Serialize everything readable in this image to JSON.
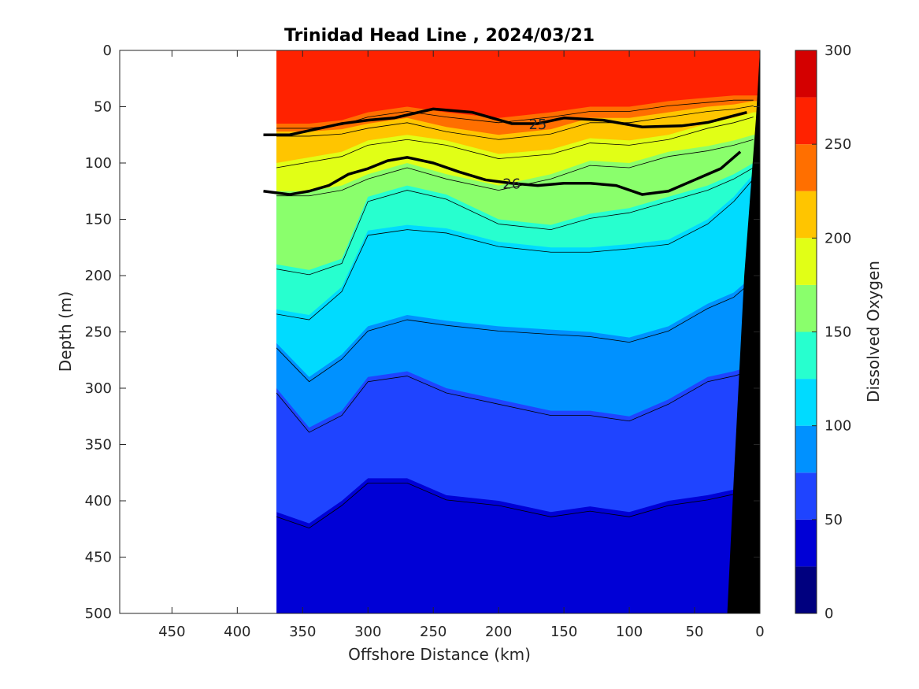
{
  "chart_data": {
    "type": "heatmap",
    "title": "Trinidad Head Line , 2024/03/21",
    "xlabel": "Offshore Distance (km)",
    "ylabel": "Depth (m)",
    "colorbar_label": "Dissolved Oxygen",
    "xlim": [
      490,
      0
    ],
    "ylim": [
      0,
      500
    ],
    "x_ticks": [
      "450",
      "400",
      "350",
      "300",
      "250",
      "200",
      "150",
      "100",
      "50",
      "0"
    ],
    "y_ticks": [
      "0",
      "50",
      "100",
      "150",
      "200",
      "250",
      "300",
      "350",
      "400",
      "450",
      "500"
    ],
    "colorbar_ticks": [
      "0",
      "50",
      "100",
      "150",
      "200",
      "250",
      "300"
    ],
    "colorbar_levels": [
      0,
      25,
      50,
      75,
      100,
      125,
      150,
      175,
      200,
      225,
      250,
      275,
      300
    ],
    "colorbar_colors": [
      "#00007f",
      "#0000d6",
      "#1f44ff",
      "#0091ff",
      "#00dbff",
      "#27ffcf",
      "#8aff6c",
      "#e1ff16",
      "#ffc500",
      "#ff6f00",
      "#ff2200",
      "#d40000"
    ],
    "data_x_extent": [
      370,
      0
    ],
    "bathymetry_color": "#000000",
    "dissolved_oxygen_contour_boundaries": [
      {
        "level": 250,
        "depths": [
          65,
          65,
          62,
          55,
          50,
          55,
          60,
          55,
          50,
          50,
          45,
          42,
          40,
          40
        ]
      },
      {
        "level": 225,
        "depths": [
          72,
          72,
          70,
          65,
          60,
          68,
          75,
          70,
          60,
          60,
          55,
          50,
          48,
          45
        ]
      },
      {
        "level": 200,
        "depths": [
          100,
          95,
          90,
          80,
          75,
          80,
          92,
          88,
          78,
          80,
          75,
          65,
          60,
          55
        ]
      },
      {
        "level": 175,
        "depths": [
          125,
          125,
          120,
          110,
          100,
          110,
          120,
          110,
          98,
          100,
          90,
          85,
          80,
          75
        ]
      },
      {
        "level": 150,
        "depths": [
          190,
          195,
          185,
          130,
          120,
          128,
          150,
          155,
          145,
          140,
          130,
          120,
          110,
          100
        ]
      },
      {
        "level": 125,
        "depths": [
          230,
          235,
          210,
          160,
          155,
          158,
          170,
          175,
          175,
          172,
          168,
          150,
          130,
          110
        ]
      },
      {
        "level": 100,
        "depths": [
          260,
          290,
          270,
          245,
          235,
          240,
          245,
          248,
          250,
          255,
          245,
          225,
          215,
          200
        ]
      },
      {
        "level": 75,
        "depths": [
          300,
          335,
          320,
          290,
          285,
          300,
          310,
          320,
          320,
          325,
          310,
          290,
          285,
          280
        ]
      },
      {
        "level": 50,
        "depths": [
          410,
          420,
          400,
          380,
          380,
          395,
          400,
          410,
          405,
          410,
          400,
          395,
          390,
          390
        ]
      }
    ],
    "dissolved_oxygen_contour_x": [
      370,
      345,
      320,
      300,
      270,
      240,
      200,
      160,
      130,
      100,
      70,
      40,
      20,
      5
    ],
    "density_contours": [
      {
        "label": "25",
        "x": [
          380,
          360,
          340,
          320,
          300,
          280,
          250,
          220,
          190,
          170,
          150,
          120,
          90,
          60,
          40,
          20,
          10
        ],
        "depth": [
          75,
          75,
          70,
          65,
          62,
          60,
          52,
          55,
          65,
          65,
          60,
          62,
          68,
          67,
          64,
          58,
          55
        ]
      },
      {
        "label": "26",
        "x": [
          380,
          360,
          345,
          330,
          315,
          300,
          285,
          270,
          250,
          230,
          210,
          190,
          170,
          150,
          130,
          110,
          90,
          70,
          50,
          30,
          15
        ],
        "depth": [
          125,
          128,
          125,
          120,
          110,
          105,
          98,
          95,
          100,
          108,
          115,
          118,
          120,
          118,
          118,
          120,
          128,
          125,
          115,
          105,
          90
        ]
      }
    ]
  }
}
